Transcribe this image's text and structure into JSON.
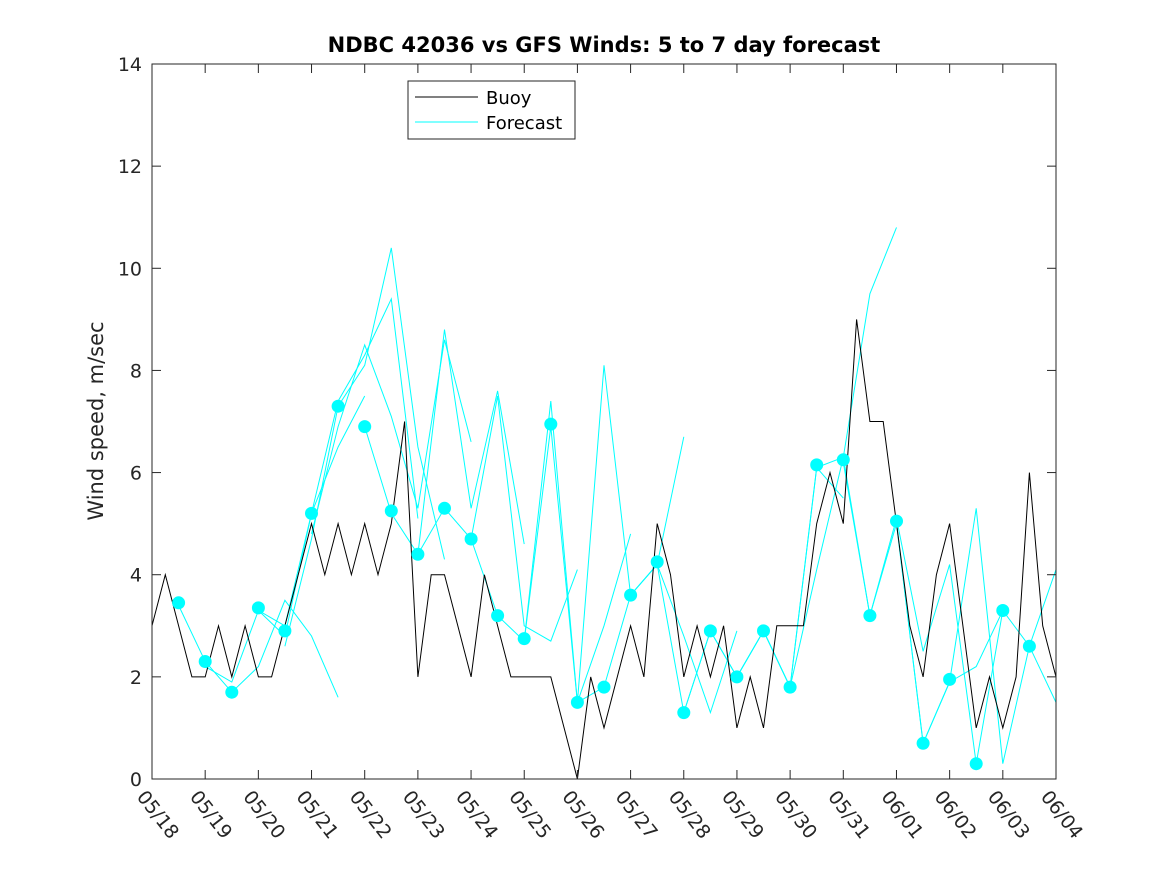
{
  "chart_data": {
    "type": "line",
    "title": "NDBC 42036 vs GFS Winds: 5 to 7 day forecast",
    "xlabel": "",
    "ylabel": "Wind speed, m/sec",
    "ylim": [
      0,
      14
    ],
    "yticks": [
      "0",
      "2",
      "4",
      "6",
      "8",
      "10",
      "12",
      "14"
    ],
    "xlim": [
      "05/18",
      "06/04"
    ],
    "xticks": [
      "05/18",
      "05/19",
      "05/20",
      "05/21",
      "05/22",
      "05/23",
      "05/24",
      "05/25",
      "05/26",
      "05/27",
      "05/28",
      "05/29",
      "05/30",
      "05/31",
      "06/01",
      "06/02",
      "06/03",
      "06/04"
    ],
    "grid": false,
    "legend": {
      "placement": "top-left",
      "entries": [
        {
          "name": "Buoy",
          "color": "#000000"
        },
        {
          "name": "Forecast",
          "color": "#00ffff"
        }
      ]
    },
    "series": [
      {
        "name": "Buoy",
        "color": "#000000",
        "x": [
          "05/18 00:00",
          "05/18 06:00",
          "05/18 12:00",
          "05/18 18:00",
          "05/19 00:00",
          "05/19 06:00",
          "05/19 12:00",
          "05/19 18:00",
          "05/20 00:00",
          "05/20 06:00",
          "05/20 12:00",
          "05/20 18:00",
          "05/21 00:00",
          "05/21 06:00",
          "05/21 12:00",
          "05/21 18:00",
          "05/22 00:00",
          "05/22 06:00",
          "05/22 12:00",
          "05/22 18:00",
          "05/23 00:00",
          "05/23 06:00",
          "05/23 12:00",
          "05/23 18:00",
          "05/24 00:00",
          "05/24 06:00",
          "05/24 12:00",
          "05/24 18:00",
          "05/25 00:00",
          "05/25 06:00",
          "05/25 12:00",
          "05/25 18:00",
          "05/26 00:00",
          "05/26 06:00",
          "05/26 12:00",
          "05/26 18:00",
          "05/27 00:00",
          "05/27 06:00",
          "05/27 12:00",
          "05/27 18:00",
          "05/28 00:00",
          "05/28 06:00",
          "05/28 12:00",
          "05/28 18:00",
          "05/29 00:00",
          "05/29 06:00",
          "05/29 12:00",
          "05/29 18:00",
          "05/30 00:00",
          "05/30 06:00",
          "05/30 12:00",
          "05/30 18:00",
          "05/31 00:00",
          "05/31 06:00",
          "05/31 12:00",
          "05/31 18:00",
          "06/01 00:00",
          "06/01 06:00",
          "06/01 12:00",
          "06/01 18:00",
          "06/02 00:00",
          "06/02 06:00",
          "06/02 12:00",
          "06/02 18:00",
          "06/03 00:00",
          "06/03 06:00",
          "06/03 12:00",
          "06/03 18:00",
          "06/04 00:00"
        ],
        "values": [
          3,
          4,
          3,
          2,
          2,
          3,
          2,
          3,
          2,
          2,
          3,
          4,
          5,
          4,
          5,
          4,
          5,
          4,
          5,
          7,
          2,
          4,
          4,
          3,
          2,
          4,
          3,
          2,
          2,
          2,
          2,
          1,
          0,
          2,
          1,
          2,
          3,
          2,
          5,
          4,
          2,
          3,
          2,
          3,
          1,
          2,
          1,
          3,
          3,
          3,
          5,
          6,
          5,
          9,
          7,
          7,
          5,
          3,
          2,
          4,
          5,
          3,
          1,
          2,
          1,
          2,
          6,
          3,
          2
        ]
      },
      {
        "name": "Forecast",
        "color": "#00ffff",
        "runs": [
          {
            "x": [
              "05/18 12:00",
              "05/19 00:00",
              "05/19 12:00",
              "05/20 00:00",
              "05/20 12:00",
              "05/21 00:00",
              "05/21 12:00"
            ],
            "values": [
              3.4,
              2.3,
              1.7,
              2.2,
              3.5,
              2.8,
              1.6
            ]
          },
          {
            "x": [
              "05/19 00:00",
              "05/19 12:00",
              "05/20 00:00",
              "05/20 12:00",
              "05/21 00:00",
              "05/21 12:00",
              "05/22 00:00"
            ],
            "values": [
              2.2,
              1.9,
              3.3,
              3.0,
              5.2,
              6.5,
              7.5
            ]
          },
          {
            "x": [
              "05/20 00:00",
              "05/20 12:00",
              "05/21 00:00",
              "05/21 12:00",
              "05/22 00:00",
              "05/22 12:00",
              "05/23 00:00"
            ],
            "values": [
              3.3,
              2.8,
              5.2,
              7.4,
              8.3,
              9.4,
              5.1
            ]
          },
          {
            "x": [
              "05/20 12:00",
              "05/21 00:00",
              "05/21 12:00",
              "05/22 00:00",
              "05/22 12:00",
              "05/23 00:00",
              "05/23 12:00"
            ],
            "values": [
              2.6,
              4.7,
              7.3,
              8.1,
              10.4,
              6.5,
              4.3
            ]
          },
          {
            "x": [
              "05/21 00:00",
              "05/21 12:00",
              "05/22 00:00",
              "05/22 12:00",
              "05/23 00:00",
              "05/23 12:00",
              "05/24 00:00"
            ],
            "values": [
              4.8,
              6.9,
              8.5,
              7.1,
              5.3,
              8.6,
              6.6
            ]
          },
          {
            "x": [
              "05/22 00:00",
              "05/22 12:00",
              "05/23 00:00",
              "05/23 12:00",
              "05/24 00:00",
              "05/24 12:00",
              "05/25 00:00"
            ],
            "values": [
              6.9,
              5.2,
              4.4,
              8.8,
              5.3,
              7.6,
              4.6
            ]
          },
          {
            "x": [
              "05/23 00:00",
              "05/23 12:00",
              "05/24 00:00",
              "05/24 12:00",
              "05/25 00:00",
              "05/25 12:00",
              "05/26 00:00"
            ],
            "values": [
              4.4,
              5.3,
              4.7,
              7.5,
              3.0,
              2.7,
              4.1
            ]
          },
          {
            "x": [
              "05/24 00:00",
              "05/24 12:00",
              "05/25 00:00",
              "05/25 12:00",
              "05/26 00:00",
              "05/26 12:00",
              "05/27 00:00"
            ],
            "values": [
              4.7,
              3.2,
              2.7,
              6.9,
              1.5,
              3.0,
              4.8
            ]
          },
          {
            "x": [
              "05/25 00:00",
              "05/25 12:00",
              "05/26 00:00",
              "05/26 12:00",
              "05/27 00:00",
              "05/27 12:00",
              "05/28 00:00"
            ],
            "values": [
              2.7,
              7.4,
              1.5,
              8.1,
              3.6,
              4.2,
              6.7
            ]
          },
          {
            "x": [
              "05/26 00:00",
              "05/26 12:00",
              "05/27 00:00",
              "05/27 12:00",
              "05/28 00:00",
              "05/28 12:00",
              "05/29 00:00"
            ],
            "values": [
              1.5,
              1.8,
              3.6,
              4.2,
              2.8,
              1.3,
              2.9
            ]
          },
          {
            "x": [
              "05/27 00:00",
              "05/27 12:00",
              "05/28 00:00",
              "05/28 12:00",
              "05/29 00:00",
              "05/29 12:00",
              "05/30 00:00"
            ],
            "values": [
              3.6,
              4.2,
              1.3,
              2.9,
              2.0,
              2.9,
              1.8
            ]
          },
          {
            "x": [
              "05/28 00:00",
              "05/28 12:00",
              "05/29 00:00",
              "05/29 12:00",
              "05/30 00:00",
              "05/30 12:00",
              "05/31 00:00"
            ],
            "values": [
              1.3,
              2.9,
              2.0,
              2.9,
              1.8,
              6.1,
              5.5
            ]
          },
          {
            "x": [
              "05/29 00:00",
              "05/29 12:00",
              "05/30 00:00",
              "05/30 12:00",
              "05/31 00:00",
              "05/31 12:00",
              "06/01 00:00"
            ],
            "values": [
              2.0,
              2.9,
              1.8,
              4.1,
              6.3,
              9.5,
              10.8
            ]
          },
          {
            "x": [
              "05/30 00:00",
              "05/30 12:00",
              "05/31 00:00",
              "05/31 12:00",
              "06/01 00:00",
              "06/01 12:00",
              "06/02 00:00"
            ],
            "values": [
              1.8,
              6.1,
              6.3,
              3.2,
              5.0,
              0.7,
              1.9
            ]
          },
          {
            "x": [
              "05/31 00:00",
              "05/31 12:00",
              "06/01 00:00",
              "06/01 12:00",
              "06/02 00:00",
              "06/02 12:00",
              "06/03 00:00"
            ],
            "values": [
              6.2,
              3.2,
              5.1,
              2.5,
              4.2,
              0.3,
              3.3
            ]
          },
          {
            "x": [
              "06/01 00:00",
              "06/01 12:00",
              "06/02 00:00",
              "06/02 12:00",
              "06/03 00:00",
              "06/03 12:00",
              "06/04 00:00"
            ],
            "values": [
              5.0,
              0.7,
              1.9,
              5.3,
              0.3,
              2.6,
              4.1
            ]
          },
          {
            "x": [
              "06/02 00:00",
              "06/02 12:00",
              "06/03 00:00",
              "06/03 12:00",
              "06/04 00:00"
            ],
            "values": [
              1.9,
              2.2,
              3.3,
              2.6,
              1.5
            ]
          }
        ]
      },
      {
        "name": "Forecast",
        "color": "#00ffff",
        "marker": "circle",
        "x": [
          "05/18 12:00",
          "05/19 00:00",
          "05/19 12:00",
          "05/20 00:00",
          "05/20 12:00",
          "05/21 00:00",
          "05/21 12:00",
          "05/22 00:00",
          "05/22 12:00",
          "05/23 00:00",
          "05/23 12:00",
          "05/24 00:00",
          "05/24 12:00",
          "05/25 00:00",
          "05/25 12:00",
          "05/26 00:00",
          "05/26 12:00",
          "05/27 00:00",
          "05/27 12:00",
          "05/28 00:00",
          "05/28 12:00",
          "05/29 00:00",
          "05/29 12:00",
          "05/30 00:00",
          "05/30 12:00",
          "05/31 00:00",
          "05/31 12:00",
          "06/01 00:00",
          "06/01 12:00",
          "06/02 00:00",
          "06/02 12:00",
          "06/03 00:00",
          "06/03 12:00"
        ],
        "values": [
          3.45,
          2.3,
          1.7,
          3.35,
          2.9,
          5.2,
          7.3,
          6.9,
          5.25,
          4.4,
          5.3,
          4.7,
          3.2,
          2.75,
          6.95,
          1.5,
          1.8,
          3.6,
          4.25,
          1.3,
          2.9,
          2.0,
          2.9,
          1.8,
          6.15,
          6.25,
          3.2,
          5.05,
          0.7,
          1.95,
          0.3,
          3.3,
          2.6
        ]
      }
    ]
  }
}
